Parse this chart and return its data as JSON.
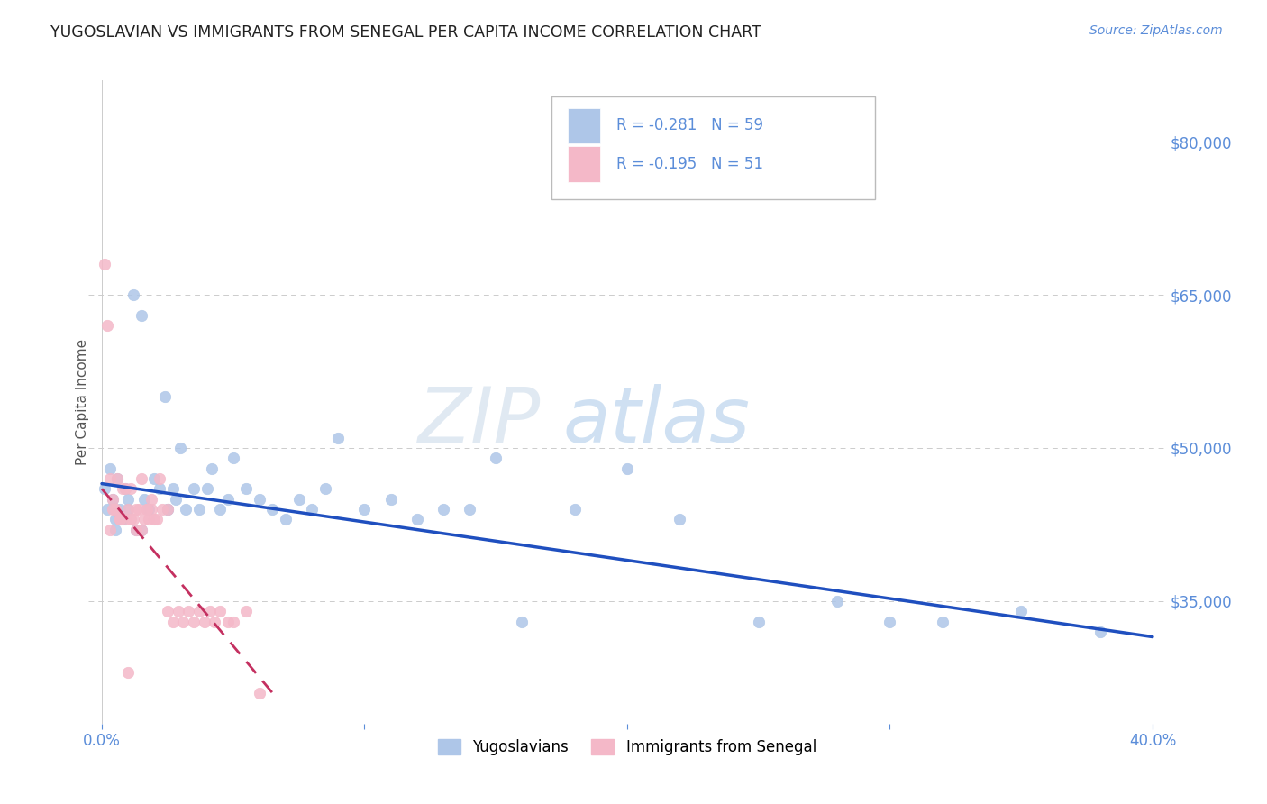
{
  "title": "YUGOSLAVIAN VS IMMIGRANTS FROM SENEGAL PER CAPITA INCOME CORRELATION CHART",
  "source_text": "Source: ZipAtlas.com",
  "ylabel": "Per Capita Income",
  "xlim": [
    -0.005,
    0.405
  ],
  "ylim": [
    23000,
    86000
  ],
  "yticks": [
    35000,
    50000,
    65000,
    80000
  ],
  "ytick_labels": [
    "$35,000",
    "$50,000",
    "$65,000",
    "$80,000"
  ],
  "xticks": [
    0.0,
    0.1,
    0.2,
    0.3,
    0.4
  ],
  "xtick_labels": [
    "0.0%",
    "",
    "",
    "",
    "40.0%"
  ],
  "legend_r1": "R = -0.281",
  "legend_n1": "N = 59",
  "legend_r2": "R = -0.195",
  "legend_n2": "N = 51",
  "series1_label": "Yugoslavians",
  "series2_label": "Immigrants from Senegal",
  "series1_color": "#aec6e8",
  "series2_color": "#f4b8c8",
  "line1_color": "#1f4fbf",
  "line2_color": "#c43060",
  "background_color": "#ffffff",
  "series1_x": [
    0.001,
    0.002,
    0.003,
    0.004,
    0.005,
    0.006,
    0.007,
    0.008,
    0.009,
    0.01,
    0.012,
    0.013,
    0.015,
    0.016,
    0.018,
    0.02,
    0.022,
    0.024,
    0.025,
    0.027,
    0.028,
    0.03,
    0.032,
    0.035,
    0.037,
    0.04,
    0.042,
    0.045,
    0.048,
    0.05,
    0.055,
    0.06,
    0.065,
    0.07,
    0.075,
    0.08,
    0.085,
    0.09,
    0.1,
    0.11,
    0.12,
    0.13,
    0.14,
    0.15,
    0.16,
    0.18,
    0.2,
    0.22,
    0.25,
    0.28,
    0.3,
    0.32,
    0.35,
    0.38,
    0.005,
    0.008,
    0.01,
    0.015,
    0.025
  ],
  "series1_y": [
    46000,
    44000,
    48000,
    45000,
    43000,
    47000,
    44000,
    43000,
    46000,
    44000,
    65000,
    42000,
    63000,
    45000,
    44000,
    47000,
    46000,
    55000,
    44000,
    46000,
    45000,
    50000,
    44000,
    46000,
    44000,
    46000,
    48000,
    44000,
    45000,
    49000,
    46000,
    45000,
    44000,
    43000,
    45000,
    44000,
    46000,
    51000,
    44000,
    45000,
    43000,
    44000,
    44000,
    49000,
    33000,
    44000,
    48000,
    43000,
    33000,
    35000,
    33000,
    33000,
    34000,
    32000,
    42000,
    43000,
    45000,
    42000,
    44000
  ],
  "series2_x": [
    0.001,
    0.002,
    0.003,
    0.004,
    0.005,
    0.006,
    0.007,
    0.008,
    0.009,
    0.01,
    0.011,
    0.012,
    0.013,
    0.014,
    0.015,
    0.016,
    0.017,
    0.018,
    0.019,
    0.02,
    0.022,
    0.025,
    0.003,
    0.005,
    0.007,
    0.009,
    0.011,
    0.013,
    0.015,
    0.017,
    0.019,
    0.021,
    0.023,
    0.025,
    0.027,
    0.029,
    0.031,
    0.033,
    0.035,
    0.037,
    0.039,
    0.041,
    0.043,
    0.045,
    0.048,
    0.05,
    0.055,
    0.06,
    0.004,
    0.007,
    0.01
  ],
  "series2_y": [
    68000,
    62000,
    47000,
    45000,
    44000,
    47000,
    43000,
    46000,
    43000,
    44000,
    46000,
    43000,
    42000,
    44000,
    47000,
    43000,
    44000,
    43000,
    44000,
    43000,
    47000,
    44000,
    42000,
    44000,
    43000,
    46000,
    43000,
    44000,
    42000,
    44000,
    45000,
    43000,
    44000,
    34000,
    33000,
    34000,
    33000,
    34000,
    33000,
    34000,
    33000,
    34000,
    33000,
    34000,
    33000,
    33000,
    34000,
    26000,
    44000,
    43000,
    28000
  ],
  "line1_x0": 0.0,
  "line1_y0": 46500,
  "line1_x1": 0.4,
  "line1_y1": 31500,
  "line2_x0": 0.0,
  "line2_y0": 46000,
  "line2_x1": 0.065,
  "line2_y1": 26000
}
